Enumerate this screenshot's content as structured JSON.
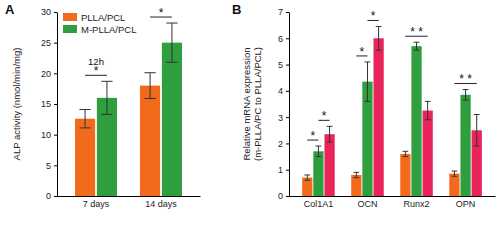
{
  "chart_data": [
    {
      "type": "bar",
      "title": "A",
      "y_label": "ALP activity (nmol/min/mg)",
      "categories": [
        "7 days",
        "14 days"
      ],
      "series": [
        {
          "name": "PLLA/PCL",
          "color": "#f26b1d",
          "values": [
            12.6,
            18.0
          ],
          "errors": [
            1.5,
            2.1
          ]
        },
        {
          "name": "M-PLLA/PCL",
          "color": "#2e9e3e",
          "values": [
            16.0,
            25.0
          ],
          "errors": [
            2.7,
            3.2
          ]
        }
      ],
      "ylim": [
        0,
        30
      ],
      "yticks": [
        0,
        5,
        10,
        15,
        20,
        25,
        30
      ],
      "grid": false,
      "legend": "upper left",
      "annotations": [
        {
          "category": 0,
          "series": [
            0,
            1
          ],
          "text": "*",
          "note": "12h"
        },
        {
          "category": 1,
          "series": [
            0,
            1
          ],
          "text": "*"
        }
      ]
    },
    {
      "type": "bar",
      "title": "B",
      "y_label": [
        "Relative mRNA expression",
        "(m-PLLA/PC to PLLA/PCL)"
      ],
      "categories": [
        "Col1A1",
        "OCN",
        "Runx2",
        "OPN"
      ],
      "series": [
        {
          "color": "#f26b1d",
          "values": [
            0.7,
            0.8,
            1.6,
            0.85
          ],
          "errors": [
            0.1,
            0.1,
            0.1,
            0.1
          ]
        },
        {
          "color": "#2e9e3e",
          "values": [
            1.7,
            4.35,
            5.7,
            3.85
          ],
          "errors": [
            0.2,
            0.75,
            0.15,
            0.2
          ]
        },
        {
          "color": "#e8245a",
          "values": [
            2.35,
            6.0,
            3.25,
            2.5
          ],
          "errors": [
            0.3,
            0.45,
            0.35,
            0.6
          ]
        }
      ],
      "ylim": [
        0,
        7
      ],
      "yticks": [
        0,
        1,
        2,
        3,
        4,
        5,
        6,
        7
      ],
      "grid": false,
      "annotations": [
        {
          "category": 0,
          "series": [
            0,
            1
          ],
          "text": "*"
        },
        {
          "category": 0,
          "series": [
            1,
            2
          ],
          "text": "*"
        },
        {
          "category": 1,
          "series": [
            0,
            1
          ],
          "text": "*"
        },
        {
          "category": 1,
          "series": [
            1,
            2
          ],
          "text": "*"
        },
        {
          "category": 2,
          "series": [
            0,
            2
          ],
          "text": "* *"
        },
        {
          "category": 3,
          "series": [
            0,
            2
          ],
          "text": "* *"
        }
      ]
    }
  ]
}
